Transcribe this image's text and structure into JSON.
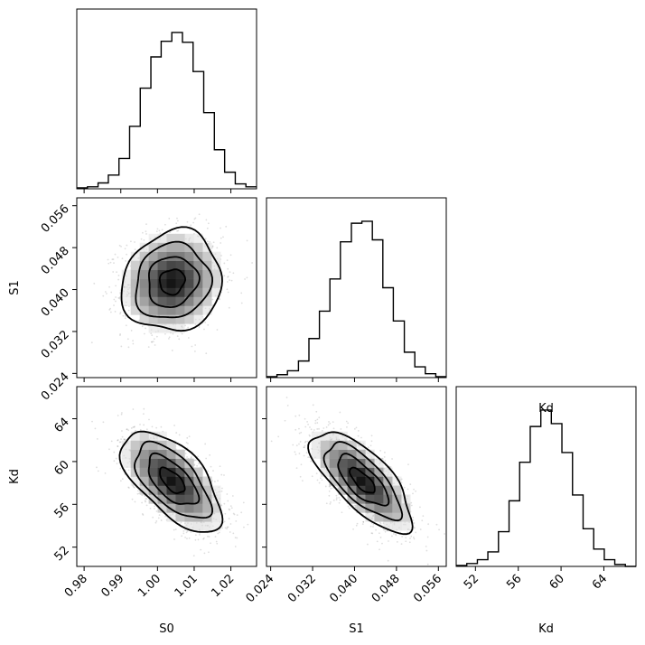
{
  "chart_data": {
    "type": "corner",
    "parameters": [
      {
        "label": "S0",
        "range": [
          0.978,
          1.027
        ],
        "ticks": [
          0.98,
          0.99,
          1.0,
          1.01,
          1.02
        ],
        "tick_labels": [
          "0.98",
          "0.99",
          "1.00",
          "1.01",
          "1.02"
        ]
      },
      {
        "label": "S1",
        "range": [
          0.0232,
          0.0575
        ],
        "ticks": [
          0.024,
          0.032,
          0.04,
          0.048,
          0.056
        ],
        "tick_labels": [
          "0.024",
          "0.032",
          "0.040",
          "0.048",
          "0.056"
        ]
      },
      {
        "label": "Kd",
        "range": [
          50.2,
          67.0
        ],
        "ticks": [
          52,
          56,
          60,
          64
        ],
        "tick_labels": [
          "52",
          "56",
          "60",
          "64"
        ]
      }
    ],
    "histograms": [
      {
        "param": "S0",
        "bin_edges": [
          0.978,
          0.9809,
          0.9838,
          0.9866,
          0.9895,
          0.9924,
          0.9953,
          0.9982,
          1.001,
          1.0039,
          1.0068,
          1.0097,
          1.0126,
          1.0155,
          1.0183,
          1.0212,
          1.0241,
          1.027
        ],
        "counts": [
          1,
          2,
          6,
          14,
          31,
          64,
          103,
          135,
          151,
          160,
          150,
          120,
          78,
          40,
          17,
          5,
          2
        ]
      },
      {
        "param": "S1",
        "bin_edges": [
          0.0232,
          0.0252,
          0.0272,
          0.0293,
          0.0313,
          0.0333,
          0.0353,
          0.0373,
          0.0394,
          0.0414,
          0.0434,
          0.0454,
          0.0474,
          0.0495,
          0.0515,
          0.0535,
          0.0555,
          0.0575
        ],
        "counts": [
          1,
          3,
          7,
          17,
          40,
          68,
          101,
          139,
          158,
          160,
          141,
          92,
          58,
          26,
          11,
          4,
          1
        ]
      },
      {
        "param": "Kd",
        "bin_edges": [
          50.2,
          51.19,
          52.18,
          53.16,
          54.15,
          55.14,
          56.13,
          57.12,
          58.11,
          59.09,
          60.08,
          61.07,
          62.06,
          63.05,
          64.04,
          65.02,
          66.01,
          67.0
        ],
        "counts": [
          1,
          3,
          7,
          15,
          36,
          68,
          108,
          145,
          162,
          148,
          118,
          74,
          39,
          18,
          7,
          2,
          0
        ]
      }
    ],
    "contour_levels": [
      "0.5",
      "1.0",
      "1.5",
      "2.0"
    ],
    "pairs": [
      {
        "x": "S0",
        "y": "S1",
        "center": [
          1.004,
          0.0415
        ],
        "sigma": [
          0.0068,
          0.0048
        ],
        "rho": 0.1
      },
      {
        "x": "S0",
        "y": "Kd",
        "center": [
          1.004,
          58.2
        ],
        "sigma": [
          0.0068,
          2.35
        ],
        "rho": -0.62
      },
      {
        "x": "S1",
        "y": "Kd",
        "center": [
          0.0415,
          58.2
        ],
        "sigma": [
          0.0048,
          2.35
        ],
        "rho": -0.72
      }
    ],
    "grid": false
  }
}
